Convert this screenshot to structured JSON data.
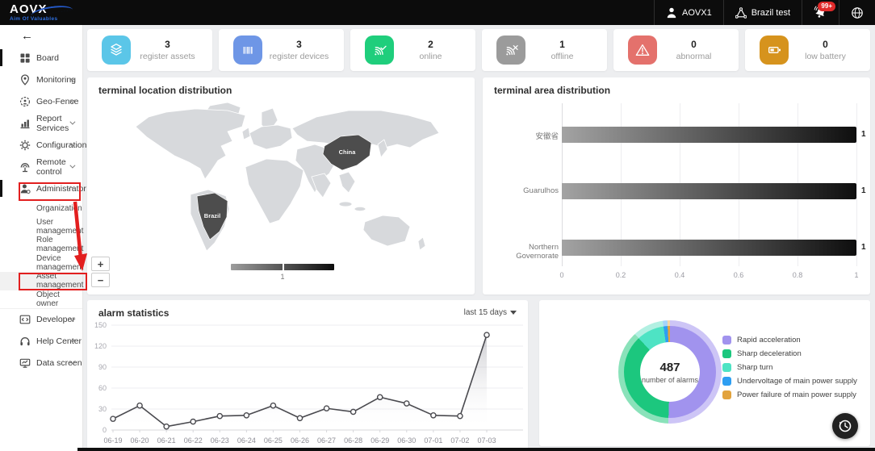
{
  "header": {
    "logo_title": "AOVX",
    "logo_subtitle": "Aim Of Valuables",
    "user_label": "AOVX1",
    "org_label": "Brazil test",
    "notification_badge": "99+"
  },
  "sidebar": {
    "back": "←",
    "items": [
      {
        "label": "Board"
      },
      {
        "label": "Monitoring"
      },
      {
        "label": "Geo-Fence"
      },
      {
        "label": "Report Services"
      },
      {
        "label": "Configuration"
      },
      {
        "label": "Remote control"
      },
      {
        "label": "Administrator"
      }
    ],
    "admin_submenu": [
      {
        "label": "Organization"
      },
      {
        "label": "User management"
      },
      {
        "label": "Role management"
      },
      {
        "label": "Device management"
      },
      {
        "label": "Asset management"
      },
      {
        "label": "Object owner"
      }
    ],
    "bottom_items": [
      {
        "label": "Developer"
      },
      {
        "label": "Help Center"
      },
      {
        "label": "Data screen"
      }
    ]
  },
  "stats": [
    {
      "value": "3",
      "label": "register assets",
      "color": "#5bc6e8"
    },
    {
      "value": "3",
      "label": "register devices",
      "color": "#6e96e6"
    },
    {
      "value": "2",
      "label": "online",
      "color": "#1fce7c"
    },
    {
      "value": "1",
      "label": "offline",
      "color": "#9b9b9b"
    },
    {
      "value": "0",
      "label": "abnormal",
      "color": "#e4716c"
    },
    {
      "value": "0",
      "label": "low battery",
      "color": "#d6931d"
    }
  ],
  "map_panel": {
    "title": "terminal location distribution",
    "zoom_in": "+",
    "zoom_out": "−",
    "legend_value": "1",
    "countries": [
      {
        "name": "China"
      },
      {
        "name": "Brazil"
      }
    ]
  },
  "area_panel": {
    "title": "terminal area distribution",
    "chart_data": {
      "type": "bar",
      "orientation": "horizontal",
      "categories": [
        "安徽省",
        "Guarulhos",
        "Northern Governorate"
      ],
      "values": [
        1,
        1,
        1
      ],
      "xticks": [
        0,
        0.2,
        0.4,
        0.6,
        0.8,
        1
      ],
      "xlim": [
        0,
        1
      ],
      "bar_gradient": [
        "#a3a3a3",
        "#0e0e0e"
      ]
    }
  },
  "alarm_panel": {
    "title": "alarm statistics",
    "range_label": "last 15 days",
    "chart_data": {
      "type": "line",
      "x": [
        "06-19",
        "06-20",
        "06-21",
        "06-22",
        "06-23",
        "06-24",
        "06-25",
        "06-26",
        "06-27",
        "06-28",
        "06-29",
        "06-30",
        "07-01",
        "07-02",
        "07-03"
      ],
      "values": [
        16,
        35,
        5,
        12,
        20,
        21,
        35,
        17,
        31,
        26,
        47,
        38,
        21,
        20,
        136
      ],
      "yticks": [
        0,
        30,
        60,
        90,
        120,
        150
      ],
      "ylim": [
        0,
        150
      ],
      "line_color": "#4a4a4f"
    }
  },
  "donut_panel": {
    "total": "487",
    "caption": "number of alarms",
    "chart_data": {
      "type": "pie",
      "series": [
        {
          "name": "Rapid acceleration",
          "value": 246,
          "color": "#a193ee",
          "light": "#cdc5f6"
        },
        {
          "name": "Sharp deceleration",
          "value": 183,
          "color": "#1cc77e",
          "light": "#8ae2ba"
        },
        {
          "name": "Sharp turn",
          "value": 47,
          "color": "#4ee3c4",
          "light": "#b2f0e2"
        },
        {
          "name": "Undervoltage of main power supply",
          "value": 7,
          "color": "#2e9ef2",
          "light": "#a4d4fa"
        },
        {
          "name": "Power failure of main power supply",
          "value": 4,
          "color": "#e2a33d",
          "light": "#f3d7a8"
        }
      ]
    }
  }
}
